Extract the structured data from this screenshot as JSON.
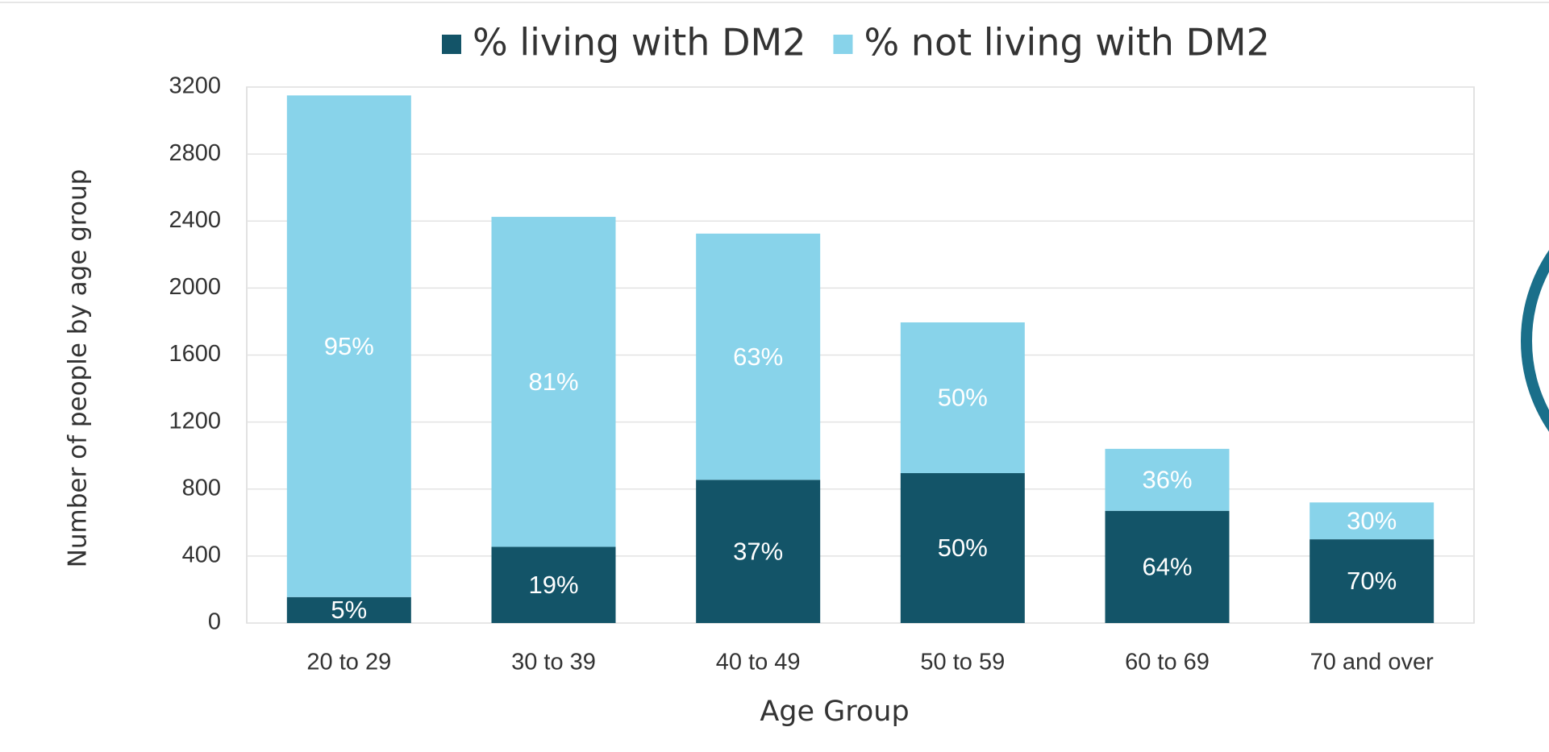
{
  "chart_data": {
    "type": "stacked_bar",
    "x_label": "Age Group",
    "y_label": "Number of people by age group",
    "categories": [
      "20 to 29",
      "30 to 39",
      "40 to 49",
      "50 to 59",
      "60 to 69",
      "70 and over"
    ],
    "series": [
      {
        "name": "% living with DM2",
        "color": "#135468",
        "values": [
          155,
          455,
          855,
          895,
          670,
          500
        ],
        "data_labels": [
          "5%",
          "19%",
          "37%",
          "50%",
          "64%",
          "70%"
        ]
      },
      {
        "name": "% not living with DM2",
        "color": "#88d3ea",
        "values": [
          2995,
          1970,
          1470,
          900,
          370,
          220
        ],
        "data_labels": [
          "95%",
          "81%",
          "63%",
          "50%",
          "36%",
          "30%"
        ]
      }
    ],
    "ylim": [
      0,
      3200
    ],
    "yticks": [
      0,
      400,
      800,
      1200,
      1600,
      2000,
      2400,
      2800,
      3200
    ],
    "grid": true,
    "legend": "top"
  }
}
